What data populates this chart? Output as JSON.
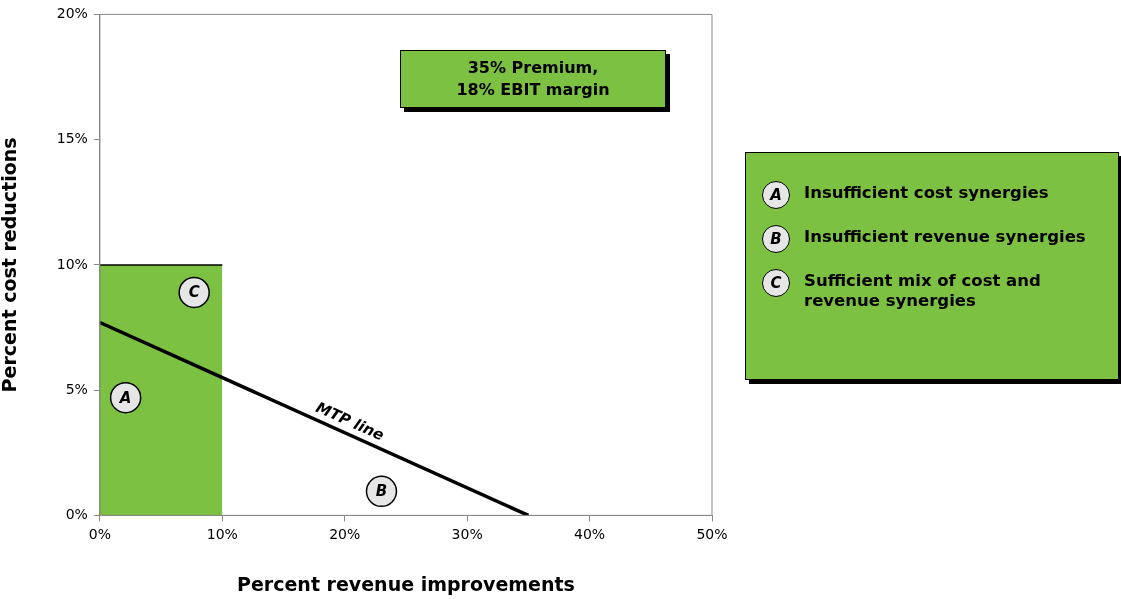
{
  "chart_data": {
    "type": "line",
    "xlabel": "Percent revenue improvements",
    "ylabel": "Percent cost reductions",
    "xlim": [
      0,
      50
    ],
    "xticks": [
      {
        "value": 0,
        "label": "0%"
      },
      {
        "value": 10,
        "label": "10%"
      },
      {
        "value": 20,
        "label": "20%"
      },
      {
        "value": 30,
        "label": "30%"
      },
      {
        "value": 40,
        "label": "40%"
      },
      {
        "value": 50,
        "label": "50%"
      }
    ],
    "ylim": [
      0,
      20
    ],
    "yticks": [
      {
        "value": 0,
        "label": "0%"
      },
      {
        "value": 5,
        "label": "5%"
      },
      {
        "value": 10,
        "label": "10%"
      },
      {
        "value": 15,
        "label": "15%"
      },
      {
        "value": 20,
        "label": "20%"
      }
    ],
    "series": [
      {
        "type": "area",
        "color": "#7dc142",
        "x": [
          0,
          10
        ],
        "values": [
          10,
          10
        ]
      },
      {
        "type": "line",
        "color": "#000000",
        "x": [
          0,
          35
        ],
        "values": [
          7.7,
          0
        ]
      }
    ],
    "marker": "none",
    "grid": false,
    "legend": false,
    "annotations": [
      {
        "text": "MTP line",
        "x": 20,
        "y": 3.3
      },
      {
        "text": "A",
        "x": 2.1,
        "y": 4.7
      },
      {
        "text": "C",
        "x": 7.7,
        "y": 8.9
      },
      {
        "text": "B",
        "x": 23,
        "y": 0.96
      },
      "35% Premium, 18% EBIT margin",
      "A",
      "Insufficient cost synergies",
      "B",
      "Insufficient revenue synergies",
      "C",
      "Sufficient mix of cost and revenue synergies"
    ]
  }
}
